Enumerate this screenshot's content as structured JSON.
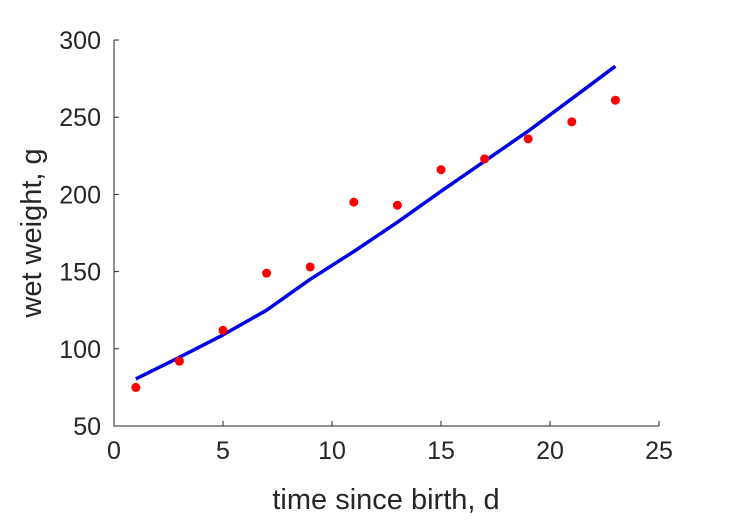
{
  "chart_data": {
    "type": "scatter",
    "title": "",
    "xlabel": "time since birth, d",
    "ylabel": "wet weight, g",
    "xlim": [
      0,
      25
    ],
    "ylim": [
      50,
      300
    ],
    "xticks": [
      0,
      5,
      10,
      15,
      20,
      25
    ],
    "yticks": [
      50,
      100,
      150,
      200,
      250,
      300
    ],
    "grid": false,
    "legend": "none",
    "series": [
      {
        "type": "scatter",
        "color": "#ff0000",
        "x": [
          1,
          3,
          5,
          7,
          9,
          11,
          13,
          15,
          17,
          19,
          21,
          23
        ],
        "y": [
          75,
          92,
          112,
          149,
          153,
          195,
          193,
          216,
          223,
          236,
          247,
          261
        ]
      },
      {
        "type": "line",
        "color": "#0000e6",
        "x": [
          1,
          3,
          5,
          7,
          9,
          11,
          13,
          15,
          17,
          19,
          21,
          23
        ],
        "y": [
          80.5,
          94.5,
          109,
          125,
          145,
          163,
          182,
          202,
          221.5,
          241,
          262,
          283
        ]
      }
    ]
  }
}
